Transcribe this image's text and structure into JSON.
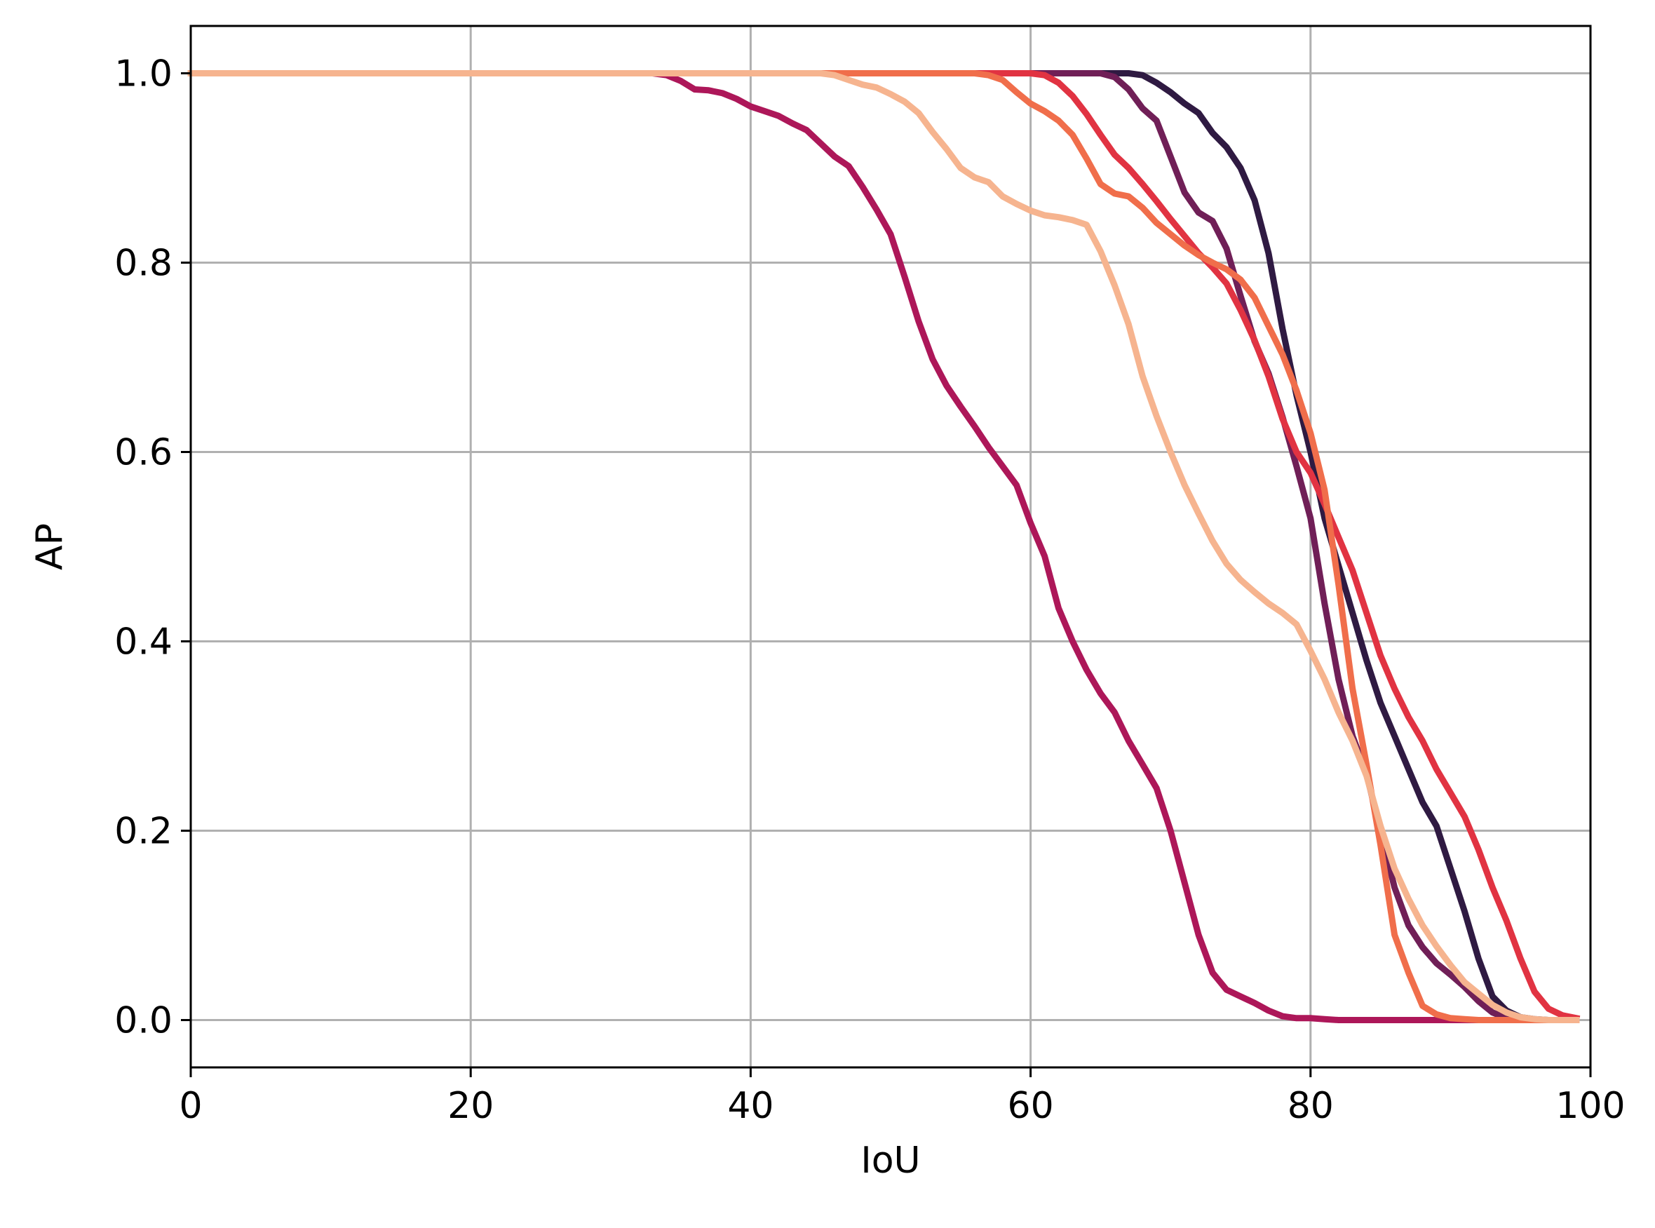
{
  "chart_data": {
    "type": "line",
    "xlabel": "IoU",
    "ylabel": "AP",
    "xlim": [
      0,
      100
    ],
    "ylim": [
      -0.05,
      1.05
    ],
    "xticks": [
      "0",
      "20",
      "40",
      "60",
      "80",
      "100"
    ],
    "yticks": [
      "0.0",
      "0.2",
      "0.4",
      "0.6",
      "0.8",
      "1.0"
    ],
    "grid": true,
    "series": [
      {
        "color": "#2f1a42",
        "x": [
          0,
          10,
          20,
          30,
          40,
          50,
          60,
          65,
          67,
          68,
          69,
          70,
          71,
          72,
          73,
          74,
          75,
          76,
          77,
          78,
          79,
          80,
          81,
          82,
          83,
          84,
          85,
          86,
          87,
          88,
          89,
          90,
          91,
          92,
          93,
          94,
          95,
          96,
          97,
          98,
          99
        ],
        "values": [
          1.0,
          1.0,
          1.0,
          1.0,
          1.0,
          1.0,
          1.0,
          1.0,
          1.0,
          0.998,
          0.99,
          0.98,
          0.968,
          0.958,
          0.937,
          0.922,
          0.9,
          0.866,
          0.81,
          0.73,
          0.66,
          0.6,
          0.53,
          0.48,
          0.43,
          0.38,
          0.335,
          0.3,
          0.265,
          0.23,
          0.205,
          0.16,
          0.115,
          0.065,
          0.025,
          0.01,
          0.003,
          0.001,
          0.0,
          0.0,
          0.0
        ]
      },
      {
        "color": "#701f57",
        "x": [
          0,
          10,
          20,
          30,
          40,
          50,
          60,
          64,
          65,
          66,
          67,
          68,
          69,
          70,
          71,
          72,
          73,
          74,
          75,
          76,
          77,
          78,
          79,
          80,
          81,
          82,
          83,
          84,
          85,
          86,
          87,
          88,
          89,
          90,
          91,
          92,
          93,
          94,
          95,
          96,
          97,
          98,
          99
        ],
        "values": [
          1.0,
          1.0,
          1.0,
          1.0,
          1.0,
          1.0,
          1.0,
          1.0,
          1.0,
          0.996,
          0.983,
          0.963,
          0.95,
          0.912,
          0.874,
          0.853,
          0.844,
          0.815,
          0.765,
          0.717,
          0.683,
          0.637,
          0.585,
          0.53,
          0.44,
          0.36,
          0.3,
          0.26,
          0.2,
          0.14,
          0.1,
          0.077,
          0.06,
          0.048,
          0.035,
          0.02,
          0.008,
          0.002,
          0.0,
          0.0,
          0.0,
          0.0,
          0.0
        ]
      },
      {
        "color": "#ad1759",
        "x": [
          0,
          10,
          20,
          30,
          33,
          34,
          35,
          36,
          37,
          38,
          39,
          40,
          41,
          42,
          43,
          44,
          45,
          46,
          47,
          48,
          49,
          50,
          51,
          52,
          53,
          54,
          55,
          56,
          57,
          58,
          59,
          60,
          61,
          62,
          63,
          64,
          65,
          66,
          67,
          68,
          69,
          70,
          71,
          72,
          73,
          74,
          75,
          76,
          77,
          78,
          79,
          80,
          81,
          82,
          85,
          90,
          95,
          99
        ],
        "values": [
          1.0,
          1.0,
          1.0,
          1.0,
          1.0,
          0.998,
          0.992,
          0.983,
          0.982,
          0.979,
          0.973,
          0.965,
          0.96,
          0.955,
          0.947,
          0.94,
          0.926,
          0.912,
          0.902,
          0.88,
          0.856,
          0.83,
          0.785,
          0.738,
          0.698,
          0.67,
          0.648,
          0.627,
          0.605,
          0.585,
          0.565,
          0.525,
          0.49,
          0.435,
          0.4,
          0.37,
          0.345,
          0.325,
          0.295,
          0.27,
          0.245,
          0.2,
          0.145,
          0.09,
          0.05,
          0.032,
          0.025,
          0.018,
          0.01,
          0.004,
          0.002,
          0.002,
          0.001,
          0.0,
          0.0,
          0.0,
          0.0,
          0.0
        ]
      },
      {
        "color": "#e13342",
        "x": [
          0,
          10,
          20,
          30,
          40,
          50,
          58,
          60,
          61,
          62,
          63,
          64,
          65,
          66,
          67,
          68,
          69,
          70,
          71,
          72,
          73,
          74,
          75,
          76,
          77,
          78,
          79,
          80,
          81,
          82,
          83,
          84,
          85,
          86,
          87,
          88,
          89,
          90,
          91,
          92,
          93,
          94,
          95,
          96,
          97,
          98,
          99
        ],
        "values": [
          1.0,
          1.0,
          1.0,
          1.0,
          1.0,
          1.0,
          1.0,
          1.0,
          0.998,
          0.99,
          0.976,
          0.957,
          0.935,
          0.914,
          0.9,
          0.883,
          0.865,
          0.846,
          0.828,
          0.81,
          0.795,
          0.778,
          0.75,
          0.718,
          0.68,
          0.635,
          0.6,
          0.578,
          0.545,
          0.51,
          0.475,
          0.43,
          0.385,
          0.35,
          0.32,
          0.295,
          0.265,
          0.24,
          0.215,
          0.18,
          0.14,
          0.105,
          0.065,
          0.03,
          0.012,
          0.005,
          0.002
        ]
      },
      {
        "color": "#f06e4b",
        "x": [
          0,
          10,
          20,
          30,
          40,
          50,
          56,
          57,
          58,
          59,
          60,
          61,
          62,
          63,
          64,
          65,
          66,
          67,
          68,
          69,
          70,
          71,
          72,
          73,
          74,
          75,
          76,
          77,
          78,
          79,
          80,
          81,
          82,
          83,
          84,
          85,
          86,
          87,
          88,
          89,
          90,
          91,
          92,
          93,
          94,
          95,
          96,
          97,
          98,
          99
        ],
        "values": [
          1.0,
          1.0,
          1.0,
          1.0,
          1.0,
          1.0,
          1.0,
          0.998,
          0.993,
          0.98,
          0.968,
          0.96,
          0.95,
          0.935,
          0.91,
          0.883,
          0.873,
          0.87,
          0.858,
          0.842,
          0.83,
          0.818,
          0.808,
          0.8,
          0.793,
          0.782,
          0.763,
          0.733,
          0.703,
          0.665,
          0.62,
          0.56,
          0.46,
          0.35,
          0.27,
          0.185,
          0.09,
          0.05,
          0.015,
          0.006,
          0.002,
          0.001,
          0.0,
          0.0,
          0.0,
          0.0,
          0.0,
          0.0,
          0.0,
          0.0
        ]
      },
      {
        "color": "#f6b48f",
        "x": [
          0,
          10,
          20,
          30,
          40,
          44,
          45,
          46,
          47,
          48,
          49,
          50,
          51,
          52,
          53,
          54,
          55,
          56,
          57,
          58,
          59,
          60,
          61,
          62,
          63,
          64,
          65,
          66,
          67,
          68,
          69,
          70,
          71,
          72,
          73,
          74,
          75,
          76,
          77,
          78,
          79,
          80,
          81,
          82,
          83,
          84,
          85,
          86,
          87,
          88,
          89,
          90,
          91,
          92,
          93,
          94,
          95,
          96,
          97,
          98,
          99
        ],
        "values": [
          1.0,
          1.0,
          1.0,
          1.0,
          1.0,
          1.0,
          1.0,
          0.998,
          0.993,
          0.988,
          0.985,
          0.978,
          0.97,
          0.958,
          0.938,
          0.92,
          0.9,
          0.89,
          0.885,
          0.87,
          0.862,
          0.855,
          0.85,
          0.848,
          0.845,
          0.84,
          0.812,
          0.776,
          0.735,
          0.68,
          0.638,
          0.6,
          0.565,
          0.535,
          0.506,
          0.482,
          0.465,
          0.452,
          0.44,
          0.43,
          0.418,
          0.39,
          0.36,
          0.325,
          0.295,
          0.258,
          0.205,
          0.16,
          0.128,
          0.1,
          0.078,
          0.058,
          0.04,
          0.028,
          0.016,
          0.008,
          0.003,
          0.001,
          0.0,
          0.0,
          0.0
        ]
      }
    ]
  }
}
